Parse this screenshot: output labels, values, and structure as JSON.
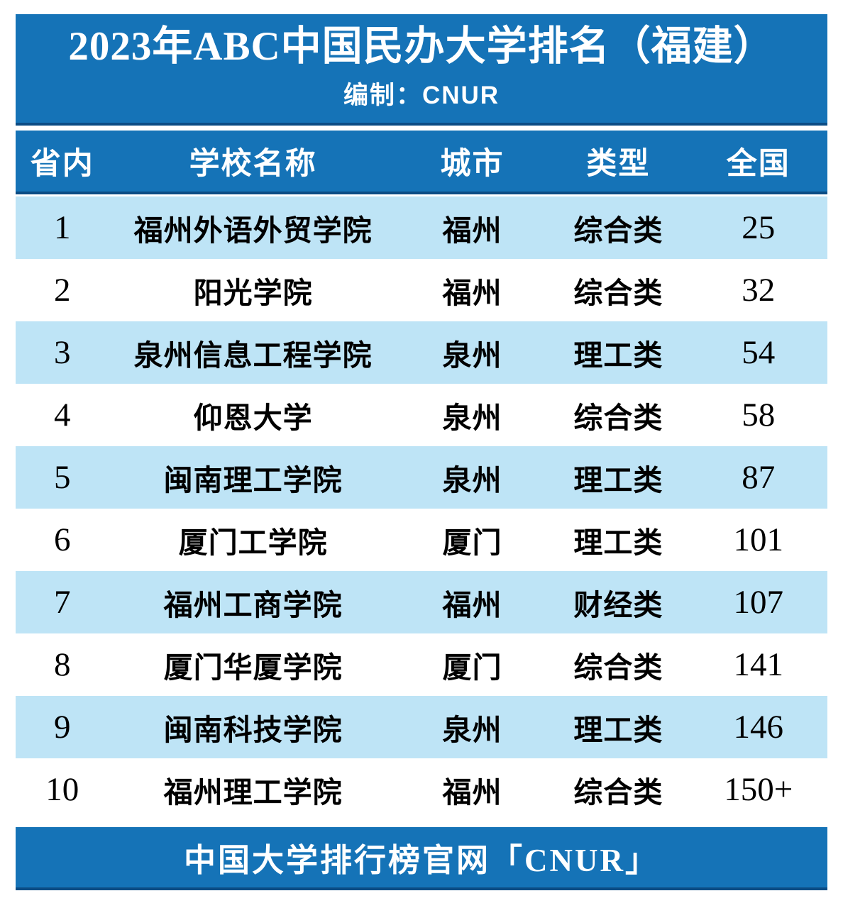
{
  "banner": {
    "title": "2023年ABC中国民办大学排名（福建）",
    "subtitle": "编制：CNUR"
  },
  "table": {
    "columns": [
      "省内",
      "学校名称",
      "城市",
      "类型",
      "全国"
    ],
    "rows": [
      {
        "rank": "1",
        "school": "福州外语外贸学院",
        "city": "福州",
        "type": "综合类",
        "national": "25"
      },
      {
        "rank": "2",
        "school": "阳光学院",
        "city": "福州",
        "type": "综合类",
        "national": "32"
      },
      {
        "rank": "3",
        "school": "泉州信息工程学院",
        "city": "泉州",
        "type": "理工类",
        "national": "54"
      },
      {
        "rank": "4",
        "school": "仰恩大学",
        "city": "泉州",
        "type": "综合类",
        "national": "58"
      },
      {
        "rank": "5",
        "school": "闽南理工学院",
        "city": "泉州",
        "type": "理工类",
        "national": "87"
      },
      {
        "rank": "6",
        "school": "厦门工学院",
        "city": "厦门",
        "type": "理工类",
        "national": "101"
      },
      {
        "rank": "7",
        "school": "福州工商学院",
        "city": "福州",
        "type": "财经类",
        "national": "107"
      },
      {
        "rank": "8",
        "school": "厦门华厦学院",
        "city": "厦门",
        "type": "综合类",
        "national": "141"
      },
      {
        "rank": "9",
        "school": "闽南科技学院",
        "city": "泉州",
        "type": "理工类",
        "national": "146"
      },
      {
        "rank": "10",
        "school": "福州理工学院",
        "city": "福州",
        "type": "综合类",
        "national": "150+"
      }
    ]
  },
  "footer": {
    "text": "中国大学排行榜官网「CNUR」"
  },
  "colors": {
    "banner_blue": "#1573B7",
    "dark_edge": "#0C4C84",
    "row_light_blue": "#BEE4F6",
    "text_on_blue": "#FFFFFF",
    "body_text": "#000000"
  }
}
